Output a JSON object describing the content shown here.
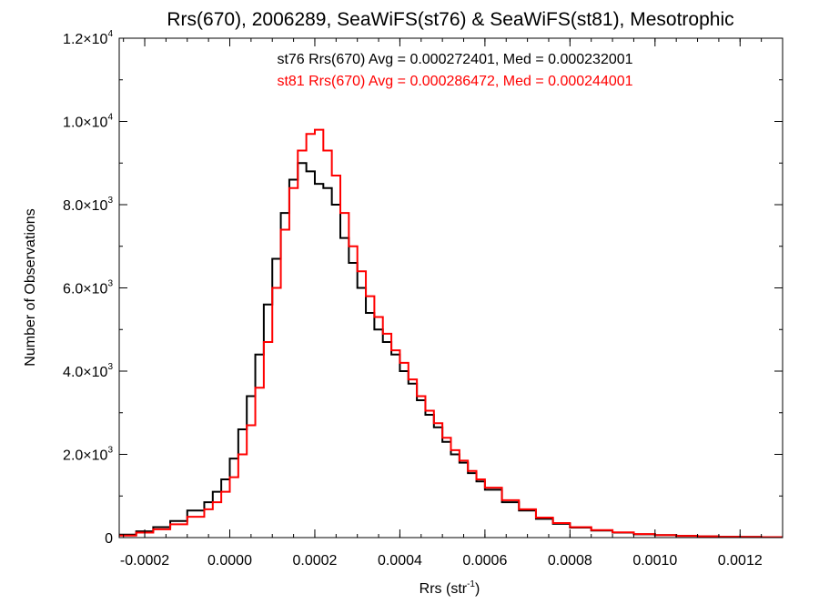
{
  "chart_data": {
    "type": "line",
    "title": "Rrs(670), 2006289, SeaWiFS(st76) & SeaWiFS(st81), Mesotrophic",
    "xlabel": {
      "base": "Rrs (str",
      "sup": "-1",
      "tail": ")"
    },
    "ylabel": "Number of Observations",
    "xlim": [
      -0.00026,
      0.0013
    ],
    "ylim": [
      0,
      12000
    ],
    "x_ticks": [
      {
        "value": -0.0002,
        "label": "-0.0002"
      },
      {
        "value": 0.0,
        "label": "0.0000"
      },
      {
        "value": 0.0002,
        "label": "0.0002"
      },
      {
        "value": 0.0004,
        "label": "0.0004"
      },
      {
        "value": 0.0006,
        "label": "0.0006"
      },
      {
        "value": 0.0008,
        "label": "0.0008"
      },
      {
        "value": 0.001,
        "label": "0.0010"
      },
      {
        "value": 0.0012,
        "label": "0.0012"
      }
    ],
    "y_ticks": [
      {
        "value": 0,
        "base": "0",
        "exp": ""
      },
      {
        "value": 2000,
        "base": "2.0×10",
        "exp": "3"
      },
      {
        "value": 4000,
        "base": "4.0×10",
        "exp": "3"
      },
      {
        "value": 6000,
        "base": "6.0×10",
        "exp": "3"
      },
      {
        "value": 8000,
        "base": "8.0×10",
        "exp": "3"
      },
      {
        "value": 10000,
        "base": "1.0×10",
        "exp": "4"
      },
      {
        "value": 12000,
        "base": "1.2×10",
        "exp": "4"
      }
    ],
    "grid": false,
    "annotations": [
      {
        "text": "st76 Rrs(670) Avg = 0.000272401, Med = 0.000232001",
        "color": "#000000"
      },
      {
        "text": "st81 Rrs(670) Avg = 0.000286472, Med = 0.000244001",
        "color": "#ff0000"
      }
    ],
    "series": [
      {
        "color": "#000000",
        "style": "step",
        "x": [
          -0.00026,
          -0.00022,
          -0.00018,
          -0.00014,
          -0.0001,
          -6e-05,
          -4e-05,
          -2e-05,
          0.0,
          2e-05,
          4e-05,
          6e-05,
          8e-05,
          0.0001,
          0.00012,
          0.00014,
          0.00016,
          0.00018,
          0.0002,
          0.00022,
          0.00024,
          0.00026,
          0.00028,
          0.0003,
          0.00032,
          0.00034,
          0.00036,
          0.00038,
          0.0004,
          0.00042,
          0.00044,
          0.00046,
          0.00048,
          0.0005,
          0.00052,
          0.00054,
          0.00056,
          0.00058,
          0.0006,
          0.00064,
          0.00068,
          0.00072,
          0.00076,
          0.0008,
          0.00085,
          0.0009,
          0.00095,
          0.001,
          0.00105,
          0.0011,
          0.00115,
          0.0012,
          0.00125,
          0.0013
        ],
        "values": [
          70,
          150,
          250,
          400,
          650,
          850,
          1100,
          1400,
          1900,
          2600,
          3400,
          4400,
          5600,
          6700,
          7800,
          8600,
          9000,
          8800,
          8500,
          8400,
          8000,
          7200,
          6600,
          6000,
          5400,
          5000,
          4700,
          4400,
          4000,
          3700,
          3300,
          2950,
          2650,
          2300,
          2000,
          1800,
          1550,
          1350,
          1150,
          850,
          650,
          450,
          330,
          240,
          170,
          120,
          80,
          60,
          40,
          30,
          20,
          15,
          10,
          5
        ]
      },
      {
        "color": "#ff0000",
        "style": "step",
        "x": [
          -0.00026,
          -0.00022,
          -0.00018,
          -0.00014,
          -0.0001,
          -6e-05,
          -4e-05,
          -2e-05,
          0.0,
          2e-05,
          4e-05,
          6e-05,
          8e-05,
          0.0001,
          0.00012,
          0.00014,
          0.00016,
          0.00018,
          0.0002,
          0.00022,
          0.00024,
          0.00026,
          0.00028,
          0.0003,
          0.00032,
          0.00034,
          0.00036,
          0.00038,
          0.0004,
          0.00042,
          0.00044,
          0.00046,
          0.00048,
          0.0005,
          0.00052,
          0.00054,
          0.00056,
          0.00058,
          0.0006,
          0.00064,
          0.00068,
          0.00072,
          0.00076,
          0.0008,
          0.00085,
          0.0009,
          0.00095,
          0.001,
          0.00105,
          0.0011,
          0.00115,
          0.0012,
          0.00125,
          0.0013
        ],
        "values": [
          50,
          120,
          200,
          320,
          500,
          680,
          850,
          1100,
          1450,
          2000,
          2700,
          3600,
          4700,
          6000,
          7400,
          8400,
          9300,
          9700,
          9800,
          9300,
          8700,
          7800,
          7000,
          6400,
          5800,
          5300,
          4900,
          4500,
          4200,
          3800,
          3400,
          3050,
          2750,
          2400,
          2100,
          1850,
          1600,
          1400,
          1200,
          900,
          680,
          480,
          350,
          250,
          180,
          125,
          85,
          60,
          40,
          30,
          20,
          15,
          10,
          5
        ]
      }
    ]
  }
}
